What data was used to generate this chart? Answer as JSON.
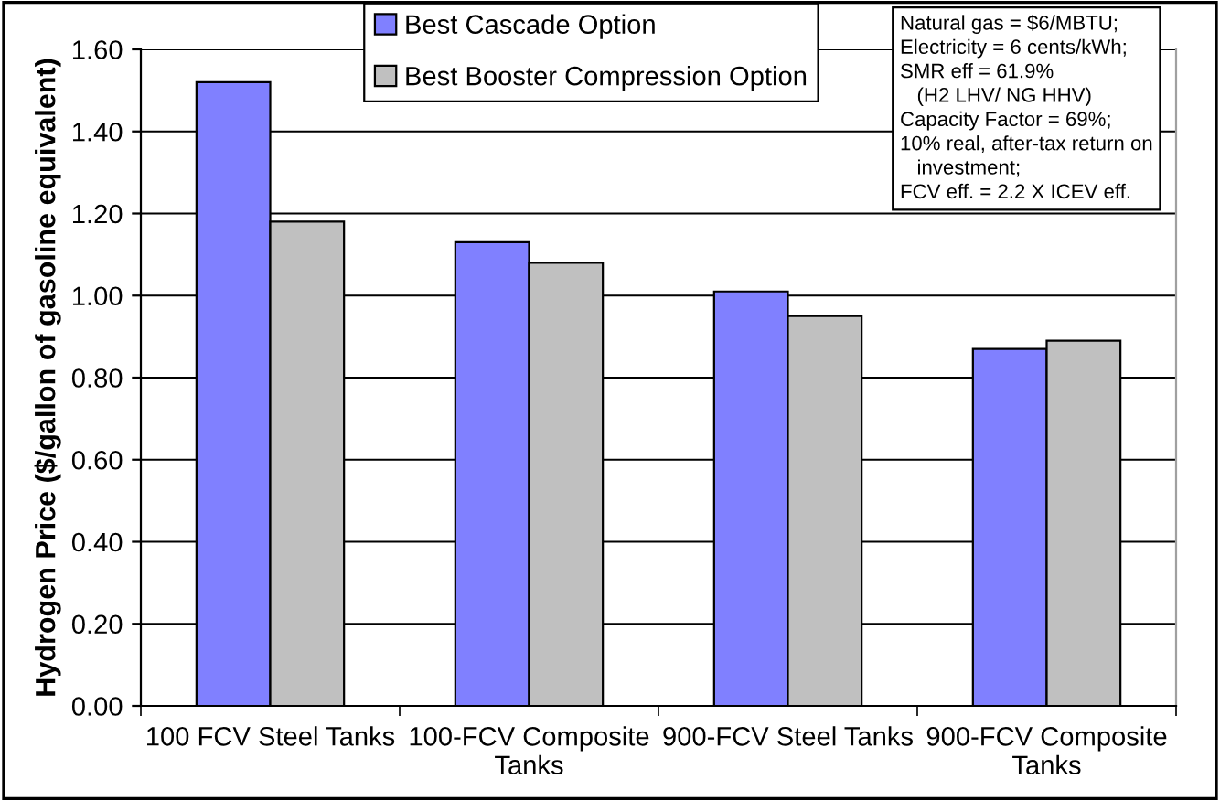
{
  "chart_data": {
    "type": "bar",
    "ylabel": "Hydrogen Price ($/gallon of gasoline equivalent)",
    "categories": [
      "100 FCV Steel Tanks",
      "100-FCV Composite\nTanks",
      "900-FCV Steel Tanks",
      "900-FCV Composite\nTanks"
    ],
    "series": [
      {
        "name": "Best Cascade Option",
        "color": "#8080ff",
        "values": [
          1.52,
          1.13,
          1.01,
          0.87
        ]
      },
      {
        "name": "Best Booster Compression Option",
        "color": "#c0c0c0",
        "values": [
          1.18,
          1.08,
          0.95,
          0.89
        ]
      }
    ],
    "ylim": [
      0,
      1.6
    ],
    "yticks": [
      {
        "value": 0,
        "label": "0.00"
      },
      {
        "value": 0.2,
        "label": "0.20"
      },
      {
        "value": 0.4,
        "label": "0.40"
      },
      {
        "value": 0.6,
        "label": "0.60"
      },
      {
        "value": 0.8,
        "label": "0.80"
      },
      {
        "value": 1.0,
        "label": "1.00"
      },
      {
        "value": 1.2,
        "label": "1.20"
      },
      {
        "value": 1.4,
        "label": "1.40"
      },
      {
        "value": 1.6,
        "label": "1.60"
      }
    ],
    "grid": "y",
    "legend": "top",
    "annotations": [
      "Natural gas = $6/MBTU;\nElectricity = 6 cents/kWh;\nSMR eff = 61.9%\n   (H2 LHV/ NG HHV)\nCapacity Factor = 69%;\n10% real, after-tax return on\n   investment;\nFCV eff. = 2.2 X ICEV eff."
    ]
  }
}
